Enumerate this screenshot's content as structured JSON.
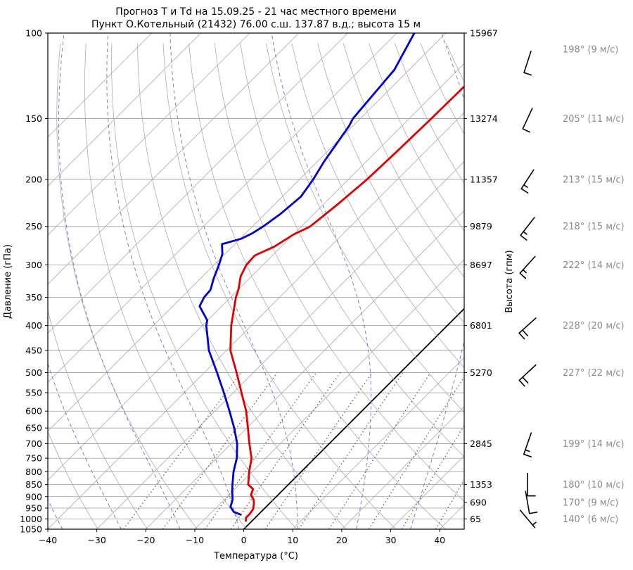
{
  "title": {
    "line1": "Прогноз Т и Td на 15.09.25 - 21 час местного времени",
    "line2": "Пункт О.Котельный (21432) 76.00 с.ш. 137.87 в.д.; высота 15 м"
  },
  "axes": {
    "x_label": "Температура (°C)",
    "y_left_label": "Давление (гПа)",
    "y_right_label": "Высота (гпм)",
    "x_ticks": [
      {
        "value": -40,
        "label": "−40"
      },
      {
        "value": -30,
        "label": "−30"
      },
      {
        "value": -20,
        "label": "−20"
      },
      {
        "value": -10,
        "label": "−10"
      },
      {
        "value": 0,
        "label": "0"
      },
      {
        "value": 10,
        "label": "10"
      },
      {
        "value": 20,
        "label": "20"
      },
      {
        "value": 30,
        "label": "30"
      },
      {
        "value": 40,
        "label": "40"
      }
    ],
    "pressure_ticks": [
      100,
      150,
      200,
      250,
      300,
      350,
      400,
      450,
      500,
      550,
      600,
      650,
      700,
      750,
      800,
      850,
      900,
      950,
      1000,
      1050
    ],
    "x_range": [
      -40,
      45
    ],
    "p_range": [
      100,
      1050
    ],
    "y_scale": "log",
    "skew_deg": 45
  },
  "chart_data": {
    "type": "line",
    "x_axis": "temperature_C",
    "y_axis": "pressure_hPa",
    "series": [
      {
        "name": "T (температура)",
        "color": "#e00000",
        "points": [
          [
            1009,
            -1.3
          ],
          [
            994,
            -1.9
          ],
          [
            977,
            -1.9
          ],
          [
            954,
            -2.2
          ],
          [
            929,
            -3.2
          ],
          [
            913,
            -4.0
          ],
          [
            893,
            -5.5
          ],
          [
            868,
            -6.3
          ],
          [
            850,
            -8.2
          ],
          [
            800,
            -10.6
          ],
          [
            750,
            -12.9
          ],
          [
            700,
            -16.3
          ],
          [
            650,
            -19.8
          ],
          [
            600,
            -23.6
          ],
          [
            550,
            -28.3
          ],
          [
            500,
            -33.4
          ],
          [
            450,
            -39.2
          ],
          [
            400,
            -44.1
          ],
          [
            350,
            -48.9
          ],
          [
            336,
            -50.1
          ],
          [
            317,
            -52.2
          ],
          [
            300,
            -53.4
          ],
          [
            287,
            -53.6
          ],
          [
            275,
            -51.4
          ],
          [
            260,
            -50.0
          ],
          [
            250,
            -48.2
          ],
          [
            225,
            -47.1
          ],
          [
            200,
            -46.2
          ],
          [
            175,
            -45.8
          ],
          [
            150,
            -45.5
          ],
          [
            128,
            -45.3
          ]
        ]
      },
      {
        "name": "Td (точка росы)",
        "color": "#0000d0",
        "points": [
          [
            980,
            -3.6
          ],
          [
            967,
            -5.6
          ],
          [
            944,
            -7.3
          ],
          [
            913,
            -8.3
          ],
          [
            875,
            -10.2
          ],
          [
            850,
            -11.4
          ],
          [
            800,
            -13.8
          ],
          [
            750,
            -15.9
          ],
          [
            700,
            -18.8
          ],
          [
            650,
            -22.6
          ],
          [
            600,
            -27.0
          ],
          [
            550,
            -31.9
          ],
          [
            500,
            -37.4
          ],
          [
            450,
            -43.6
          ],
          [
            400,
            -49.2
          ],
          [
            390,
            -50.1
          ],
          [
            365,
            -54.5
          ],
          [
            350,
            -55.4
          ],
          [
            338,
            -55.6
          ],
          [
            320,
            -57.3
          ],
          [
            300,
            -59.0
          ],
          [
            285,
            -60.5
          ],
          [
            272,
            -62.6
          ],
          [
            265,
            -59.8
          ],
          [
            258,
            -58.6
          ],
          [
            250,
            -57.8
          ],
          [
            235,
            -56.8
          ],
          [
            217,
            -56.2
          ],
          [
            200,
            -57.2
          ],
          [
            184,
            -58.6
          ],
          [
            155,
            -60.8
          ],
          [
            150,
            -61.5
          ],
          [
            119,
            -63.0
          ],
          [
            100,
            -66.4
          ]
        ]
      }
    ],
    "height_labels": [
      {
        "p": 100,
        "h": "15967"
      },
      {
        "p": 150,
        "h": "13274"
      },
      {
        "p": 200,
        "h": "11357"
      },
      {
        "p": 250,
        "h": "9879"
      },
      {
        "p": 300,
        "h": "8697"
      },
      {
        "p": 400,
        "h": "6801"
      },
      {
        "p": 500,
        "h": "5270"
      },
      {
        "p": 700,
        "h": "2845"
      },
      {
        "p": 850,
        "h": "1353"
      },
      {
        "p": 925,
        "h": "690"
      },
      {
        "p": 1000,
        "h": "65"
      }
    ],
    "wind": [
      {
        "p": 100,
        "dir_deg": 198,
        "speed_ms": 9,
        "label": "198° (9 м/с)"
      },
      {
        "p": 150,
        "dir_deg": 205,
        "speed_ms": 11,
        "label": "205° (11 м/с)"
      },
      {
        "p": 200,
        "dir_deg": 213,
        "speed_ms": 15,
        "label": "213° (15 м/с)"
      },
      {
        "p": 250,
        "dir_deg": 218,
        "speed_ms": 15,
        "label": "218° (15 м/с)"
      },
      {
        "p": 300,
        "dir_deg": 222,
        "speed_ms": 14,
        "label": "222° (14 м/с)"
      },
      {
        "p": 400,
        "dir_deg": 228,
        "speed_ms": 20,
        "label": "228° (20 м/с)"
      },
      {
        "p": 500,
        "dir_deg": 227,
        "speed_ms": 22,
        "label": "227° (22 м/с)"
      },
      {
        "p": 700,
        "dir_deg": 199,
        "speed_ms": 14,
        "label": "199° (14 м/с)"
      },
      {
        "p": 850,
        "dir_deg": 180,
        "speed_ms": 10,
        "label": "180° (10 м/с)"
      },
      {
        "p": 925,
        "dir_deg": 170,
        "speed_ms": 9,
        "label": "170° (9 м/с)"
      },
      {
        "p": 1000,
        "dir_deg": 140,
        "speed_ms": 6,
        "label": "140° (6 м/с)"
      }
    ],
    "reference_lines": {
      "isotherm_step_C": 10,
      "zero_isotherm_C": 0,
      "dry_adiabats_theta_K": {
        "start": 240,
        "end": 440,
        "step": 10
      },
      "moist_adiabats_start_C": [
        -37,
        -25,
        -13,
        -1,
        11,
        23,
        34,
        45
      ],
      "mixing_ratio_g_kg": [
        0.5,
        1,
        2,
        3,
        5,
        8,
        12,
        20,
        30,
        45
      ],
      "mixing_ratio_p_top": 500
    }
  },
  "colors": {
    "temperature": "#e00000",
    "dewpoint": "#0000d0",
    "grid_gray": "#ababab",
    "pressure_grid": "#9a9a9a",
    "moist_adiabat": "#7b7bea",
    "mixing_ratio": "#8d5f3c",
    "zero_isotherm": "#000000",
    "wind_text": "#8a8a8a",
    "barb": "#000000",
    "background": "#ffffff"
  }
}
